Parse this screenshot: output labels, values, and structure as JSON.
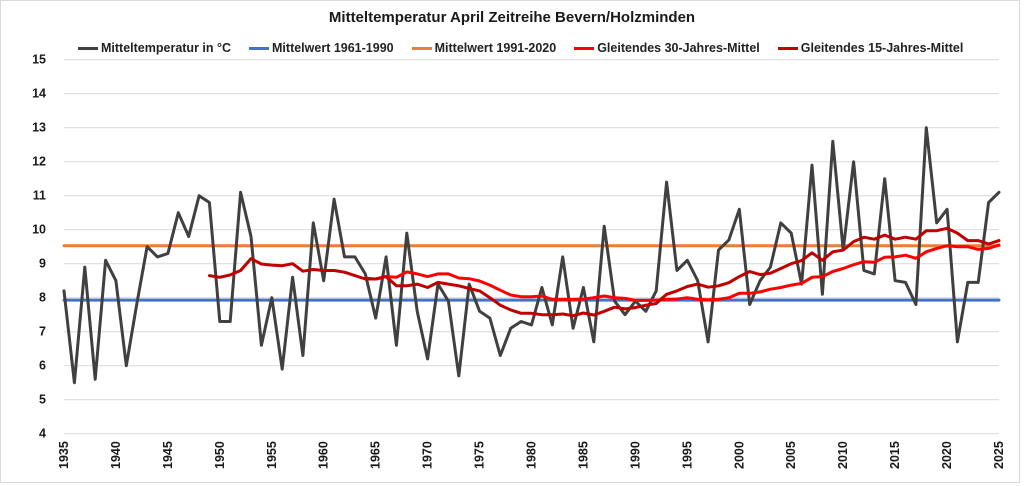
{
  "chart_data": {
    "type": "line",
    "title": "Mitteltemperatur April Zeitreihe Bevern/Holzminden",
    "xlabel": "",
    "ylabel": "",
    "xlim": [
      1935,
      2025
    ],
    "ylim": [
      4,
      15
    ],
    "grid": true,
    "legend_position": "top",
    "x_ticks": [
      "1935",
      "1940",
      "1945",
      "1950",
      "1955",
      "1960",
      "1965",
      "1970",
      "1975",
      "1980",
      "1985",
      "1990",
      "1995",
      "2000",
      "2005",
      "2010",
      "2015",
      "2020",
      "2025"
    ],
    "y_ticks": [
      "4",
      "5",
      "6",
      "7",
      "8",
      "9",
      "10",
      "11",
      "12",
      "13",
      "14",
      "15"
    ],
    "series": [
      {
        "name": "Mitteltemperatur in °C",
        "color": "#404040",
        "start_year": 1935,
        "values": [
          8.2,
          5.5,
          8.9,
          5.6,
          9.1,
          8.5,
          6.0,
          7.8,
          9.5,
          9.2,
          9.3,
          10.5,
          9.8,
          11.0,
          10.8,
          7.3,
          7.3,
          11.1,
          9.8,
          6.6,
          8.0,
          5.9,
          8.6,
          6.3,
          10.2,
          8.5,
          10.9,
          9.2,
          9.2,
          8.7,
          7.4,
          9.2,
          6.6,
          9.9,
          7.6,
          6.2,
          8.4,
          7.9,
          5.7,
          8.4,
          7.6,
          7.4,
          6.3,
          7.1,
          7.3,
          7.2,
          8.3,
          7.2,
          9.2,
          7.1,
          8.3,
          6.7,
          10.1,
          7.9,
          7.5,
          7.9,
          7.6,
          8.2,
          11.4,
          8.8,
          9.1,
          8.5,
          6.7,
          9.4,
          9.7,
          10.6,
          7.8,
          8.5,
          8.9,
          10.2,
          9.9,
          8.4,
          11.9,
          8.1,
          12.6,
          9.4,
          12.0,
          8.8,
          8.7,
          11.5,
          8.5,
          8.45,
          7.8,
          13.0,
          10.2,
          10.6,
          6.7,
          8.45,
          8.45,
          10.8,
          11.1
        ]
      },
      {
        "name": "Mittelwert 1961-1990",
        "color": "#4472c4",
        "start_year": 1935,
        "end_year": 2025,
        "constant": 7.93
      },
      {
        "name": "Mittelwert 1991-2020",
        "color": "#ed7d31",
        "start_year": 1935,
        "end_year": 2025,
        "constant": 9.53
      },
      {
        "name": "Gleitendes 30-Jahres-Mittel",
        "color": "#ff0000",
        "start_year": 1964,
        "values": [
          8.57,
          8.55,
          8.62,
          8.6,
          8.76,
          8.7,
          8.62,
          8.7,
          8.7,
          8.58,
          8.56,
          8.49,
          8.37,
          8.22,
          8.08,
          8.03,
          8.03,
          8.05,
          7.95,
          7.95,
          7.95,
          7.96,
          8.0,
          8.05,
          8.0,
          7.98,
          7.92,
          7.92,
          7.93,
          7.95,
          7.96,
          8.0,
          7.95,
          7.94,
          7.95,
          8.0,
          8.13,
          8.13,
          8.17,
          8.25,
          8.3,
          8.37,
          8.42,
          8.6,
          8.62,
          8.77,
          8.86,
          8.97,
          9.06,
          9.04,
          9.19,
          9.2,
          9.25,
          9.16,
          9.35,
          9.45,
          9.53,
          9.5,
          9.5,
          9.42,
          9.45,
          9.55
        ]
      },
      {
        "name": "Gleitendes 15-Jahres-Mittel",
        "color": "#c00000",
        "start_year": 1949,
        "values": [
          8.65,
          8.6,
          8.67,
          8.8,
          9.15,
          8.99,
          8.96,
          8.94,
          9.0,
          8.78,
          8.83,
          8.8,
          8.8,
          8.75,
          8.65,
          8.55,
          8.55,
          8.62,
          8.35,
          8.35,
          8.4,
          8.3,
          8.45,
          8.4,
          8.35,
          8.27,
          8.2,
          8.0,
          7.78,
          7.64,
          7.54,
          7.54,
          7.5,
          7.5,
          7.52,
          7.47,
          7.55,
          7.49,
          7.6,
          7.72,
          7.67,
          7.71,
          7.78,
          7.83,
          8.1,
          8.2,
          8.33,
          8.4,
          8.31,
          8.35,
          8.44,
          8.62,
          8.77,
          8.68,
          8.72,
          8.86,
          9.0,
          9.09,
          9.32,
          9.1,
          9.35,
          9.4,
          9.65,
          9.78,
          9.72,
          9.84,
          9.72,
          9.78,
          9.72,
          9.97,
          9.97,
          10.04,
          9.9,
          9.68,
          9.68,
          9.58,
          9.68
        ]
      }
    ]
  }
}
